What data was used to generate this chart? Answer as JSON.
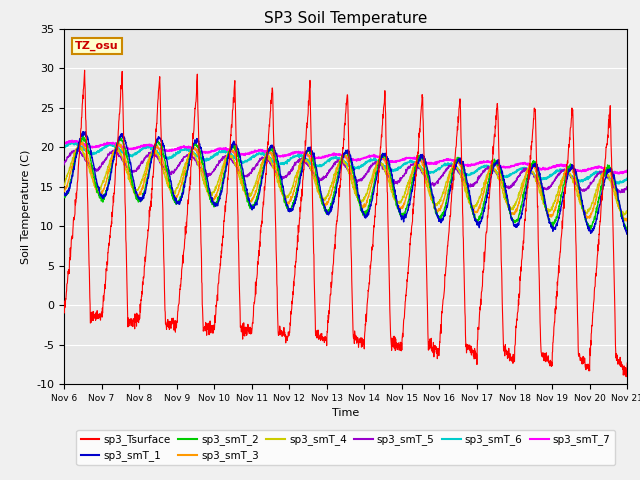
{
  "title": "SP3 Soil Temperature",
  "xlabel": "Time",
  "ylabel": "Soil Temperature (C)",
  "ylim": [
    -10,
    35
  ],
  "yticks": [
    -10,
    -5,
    0,
    5,
    10,
    15,
    20,
    25,
    30,
    35
  ],
  "xtick_labels": [
    "Nov 6",
    "Nov 7",
    "Nov 8",
    "Nov 9",
    "Nov 10",
    "Nov 11",
    "Nov 12",
    "Nov 13",
    "Nov 14",
    "Nov 15",
    "Nov 16",
    "Nov 17",
    "Nov 18",
    "Nov 19",
    "Nov 20",
    "Nov 21"
  ],
  "tz_label": "TZ_osu",
  "series_colors": {
    "sp3_Tsurface": "#ff0000",
    "sp3_smT_1": "#0000cc",
    "sp3_smT_2": "#00cc00",
    "sp3_smT_3": "#ff9900",
    "sp3_smT_4": "#cccc00",
    "sp3_smT_5": "#9900cc",
    "sp3_smT_6": "#00cccc",
    "sp3_smT_7": "#ff00ff"
  },
  "n_days": 15,
  "pts_per_day": 144
}
